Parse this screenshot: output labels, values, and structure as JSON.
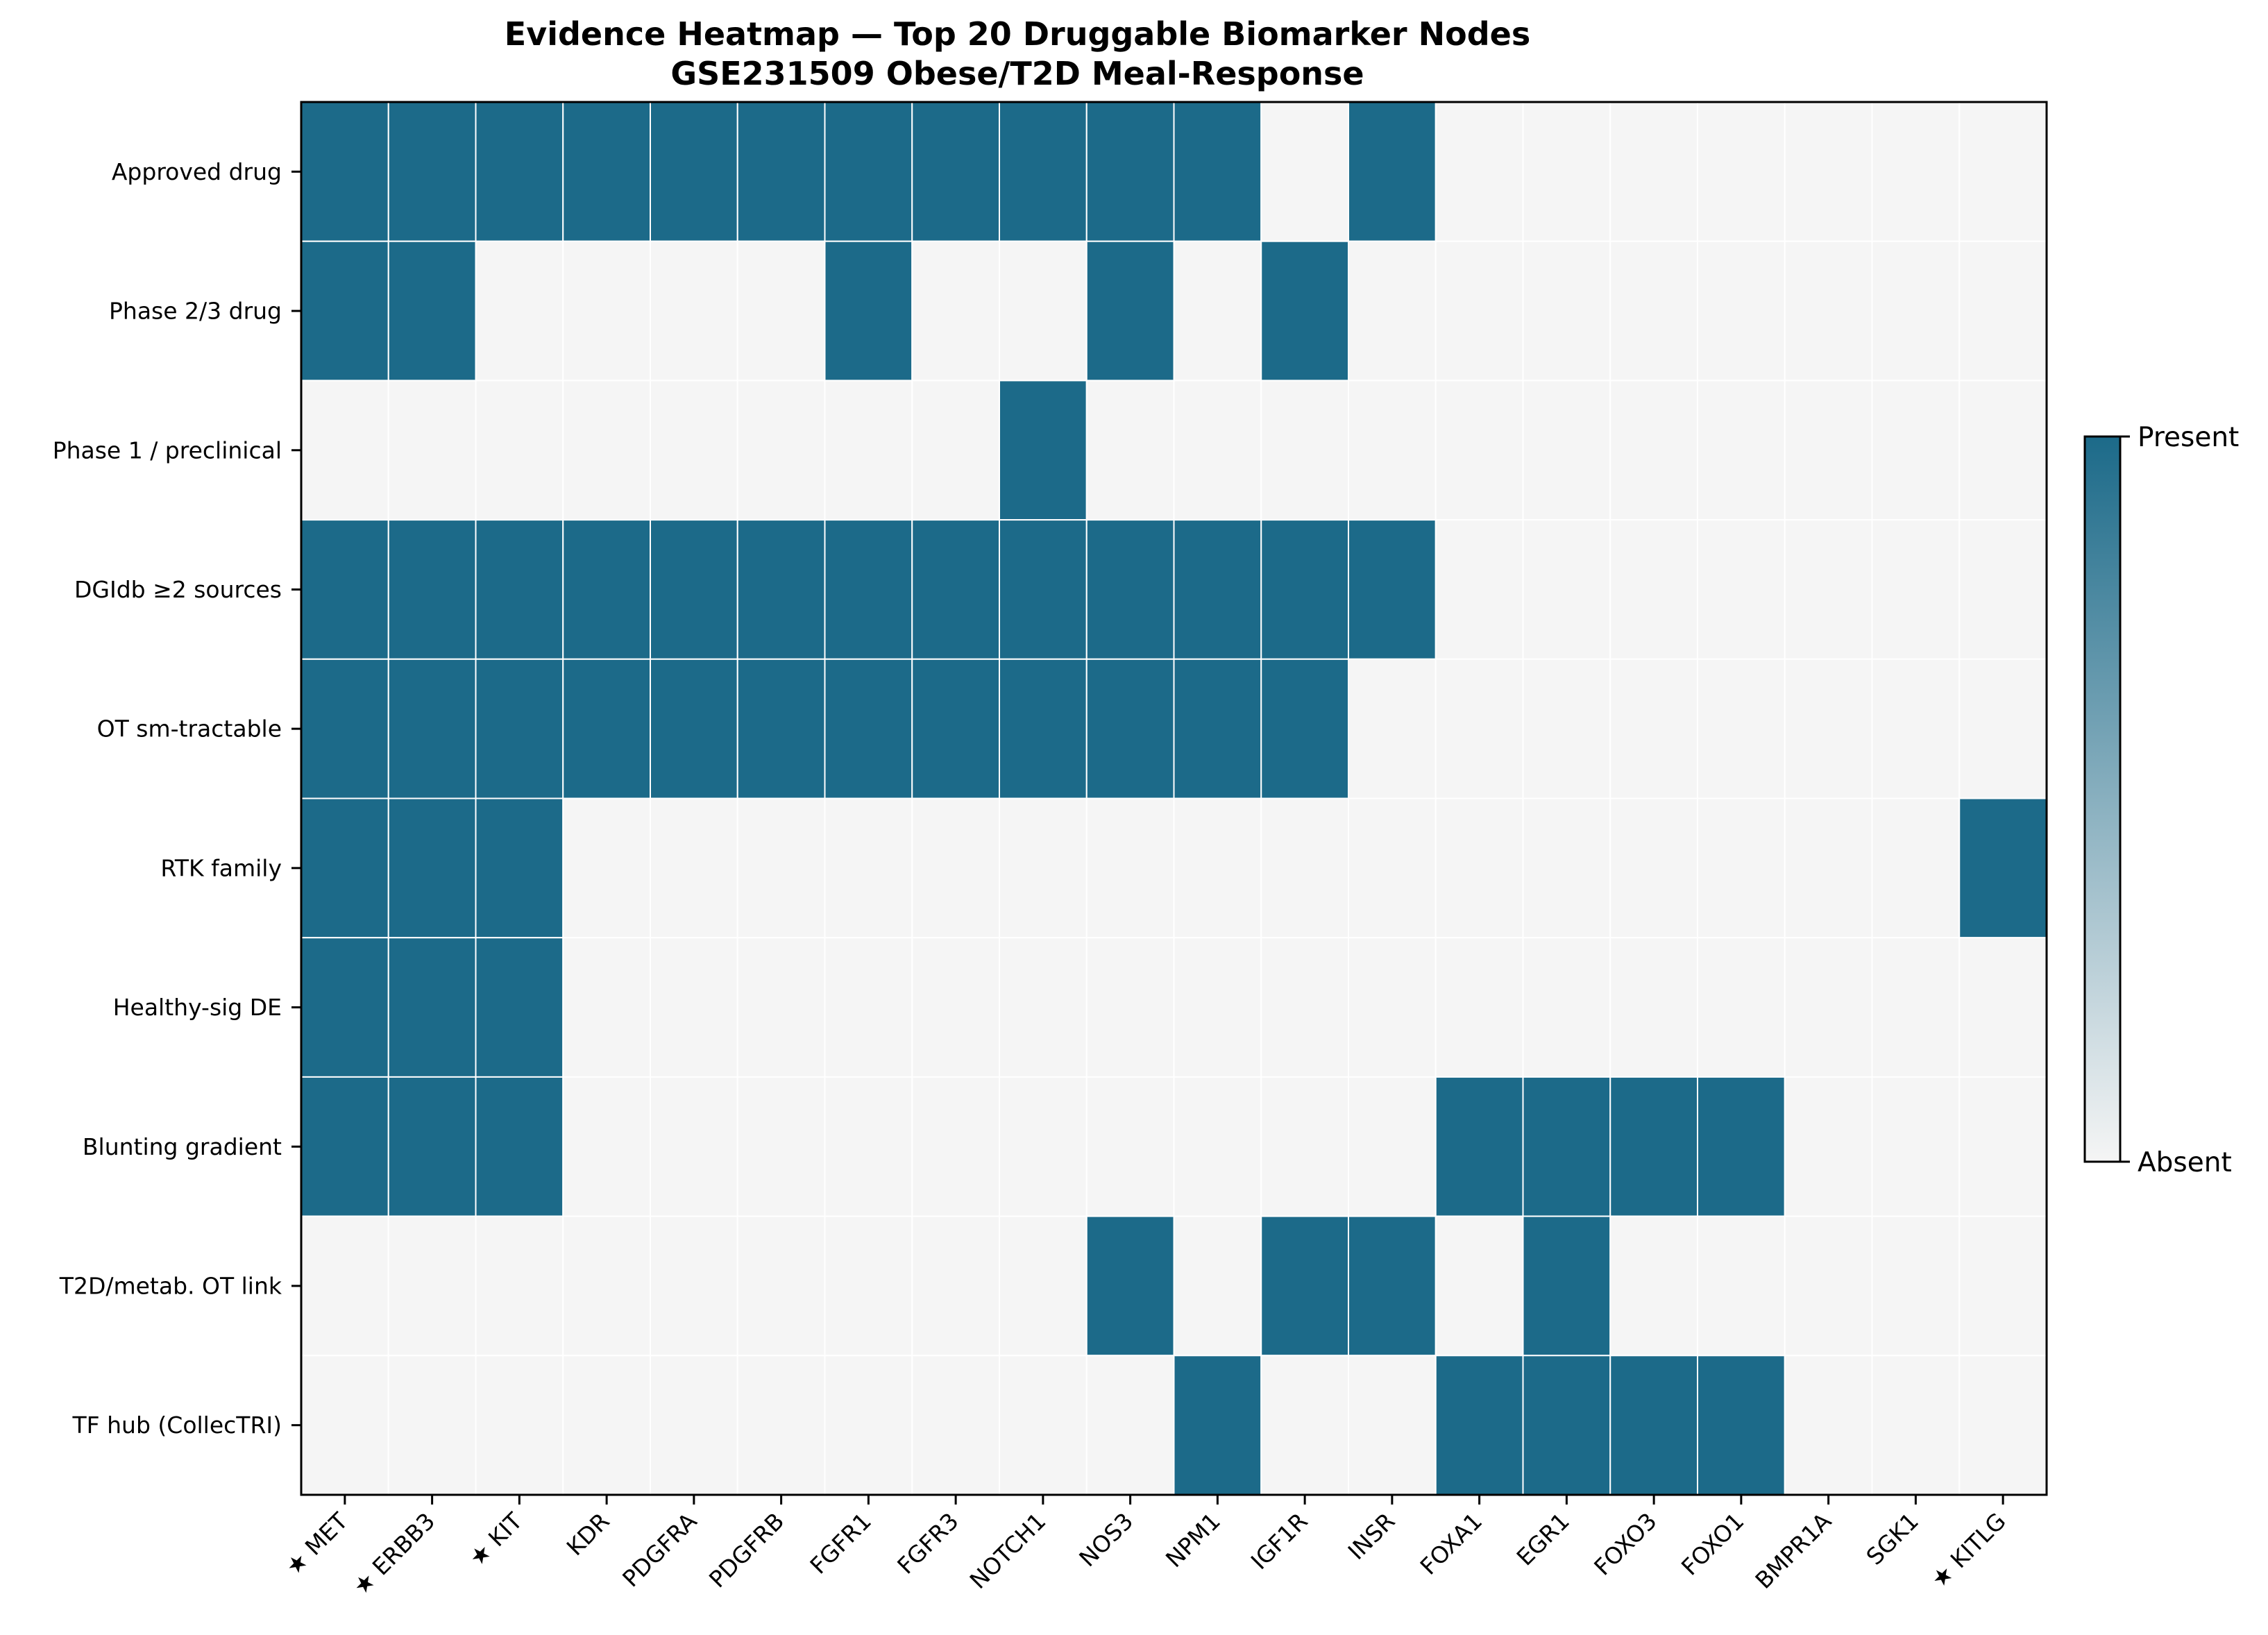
{
  "chart_data": {
    "type": "heatmap",
    "title": "Evidence Heatmap — Top 20 Druggable Biomarker Nodes",
    "subtitle": "GSE231509 Obese/T2D Meal-Response",
    "rows": [
      "Approved drug",
      "Phase 2/3 drug",
      "Phase 1 / preclinical",
      "DGIdb ≥2 sources",
      "OT sm-tractable",
      "RTK family",
      "Healthy-sig DE",
      "Blunting gradient",
      "T2D/metab. OT link",
      "TF hub (CollecTRI)"
    ],
    "columns": [
      "★ MET",
      "★ ERBB3",
      "★ KIT",
      "KDR",
      "PDGFRA",
      "PDGFRB",
      "FGFR1",
      "FGFR3",
      "NOTCH1",
      "NOS3",
      "NPM1",
      "IGF1R",
      "INSR",
      "FOXA1",
      "EGR1",
      "FOXO3",
      "FOXO1",
      "BMPR1A",
      "SGK1",
      "★ KITLG"
    ],
    "values": [
      [
        1,
        1,
        1,
        1,
        1,
        1,
        1,
        1,
        1,
        1,
        1,
        0,
        1,
        0,
        0,
        0,
        0,
        0,
        0,
        0
      ],
      [
        1,
        1,
        0,
        0,
        0,
        0,
        1,
        0,
        0,
        1,
        0,
        1,
        0,
        0,
        0,
        0,
        0,
        0,
        0,
        0
      ],
      [
        0,
        0,
        0,
        0,
        0,
        0,
        0,
        0,
        1,
        0,
        0,
        0,
        0,
        0,
        0,
        0,
        0,
        0,
        0,
        0
      ],
      [
        1,
        1,
        1,
        1,
        1,
        1,
        1,
        1,
        1,
        1,
        1,
        1,
        1,
        0,
        0,
        0,
        0,
        0,
        0,
        0
      ],
      [
        1,
        1,
        1,
        1,
        1,
        1,
        1,
        1,
        1,
        1,
        1,
        1,
        0,
        0,
        0,
        0,
        0,
        0,
        0,
        0
      ],
      [
        1,
        1,
        1,
        0,
        0,
        0,
        0,
        0,
        0,
        0,
        0,
        0,
        0,
        0,
        0,
        0,
        0,
        0,
        0,
        1
      ],
      [
        1,
        1,
        1,
        0,
        0,
        0,
        0,
        0,
        0,
        0,
        0,
        0,
        0,
        0,
        0,
        0,
        0,
        0,
        0,
        0
      ],
      [
        1,
        1,
        1,
        0,
        0,
        0,
        0,
        0,
        0,
        0,
        0,
        0,
        0,
        1,
        1,
        1,
        1,
        0,
        0,
        0
      ],
      [
        0,
        0,
        0,
        0,
        0,
        0,
        0,
        0,
        0,
        1,
        0,
        1,
        1,
        0,
        1,
        0,
        0,
        0,
        0,
        0
      ],
      [
        0,
        0,
        0,
        0,
        0,
        0,
        0,
        0,
        0,
        0,
        1,
        0,
        0,
        1,
        1,
        1,
        1,
        0,
        0,
        0
      ]
    ],
    "colorbar": {
      "max_label": "Present",
      "min_label": "Absent"
    },
    "colors": {
      "present": "#1c6a89",
      "absent": "#f5f5f5"
    }
  }
}
